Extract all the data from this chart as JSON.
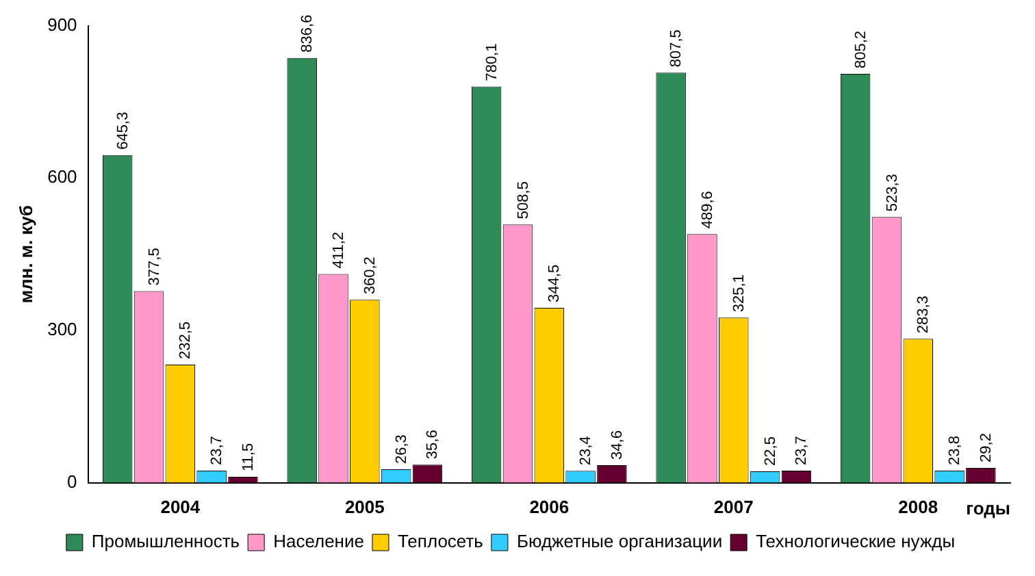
{
  "chart_data": {
    "type": "bar",
    "ylabel": "млн. м. куб",
    "xlabel": "годы",
    "categories": [
      "2004",
      "2005",
      "2006",
      "2007",
      "2008"
    ],
    "series": [
      {
        "name": "Промышленность",
        "color": "#2e8b57",
        "values": [
          645.3,
          836.6,
          780.1,
          807.5,
          805.2
        ],
        "value_labels": [
          "645,3",
          "836,6",
          "780,1",
          "807,5",
          "805,2"
        ]
      },
      {
        "name": "Население",
        "color": "#ff99cc",
        "values": [
          377.5,
          411.2,
          508.5,
          489.6,
          523.3
        ],
        "value_labels": [
          "377,5",
          "411,2",
          "508,5",
          "489,6",
          "523,3"
        ]
      },
      {
        "name": "Теплосеть",
        "color": "#ffcc00",
        "values": [
          232.5,
          360.2,
          344.5,
          325.1,
          283.3
        ],
        "value_labels": [
          "232,5",
          "360,2",
          "344,5",
          "325,1",
          "283,3"
        ]
      },
      {
        "name": "Бюджетные организации",
        "color": "#33ccff",
        "values": [
          23.7,
          26.3,
          23.4,
          22.5,
          23.8
        ],
        "value_labels": [
          "23,7",
          "26,3",
          "23,4",
          "22,5",
          "23,8"
        ]
      },
      {
        "name": "Технологические нужды",
        "color": "#660033",
        "values": [
          11.5,
          35.6,
          34.6,
          23.7,
          29.2
        ],
        "value_labels": [
          "11,5",
          "35,6",
          "34,6",
          "23,7",
          "29,2"
        ]
      }
    ],
    "ylim": [
      0,
      900
    ],
    "yticks": [
      0,
      300,
      600,
      900
    ],
    "grid": false,
    "legend": "bottom"
  }
}
